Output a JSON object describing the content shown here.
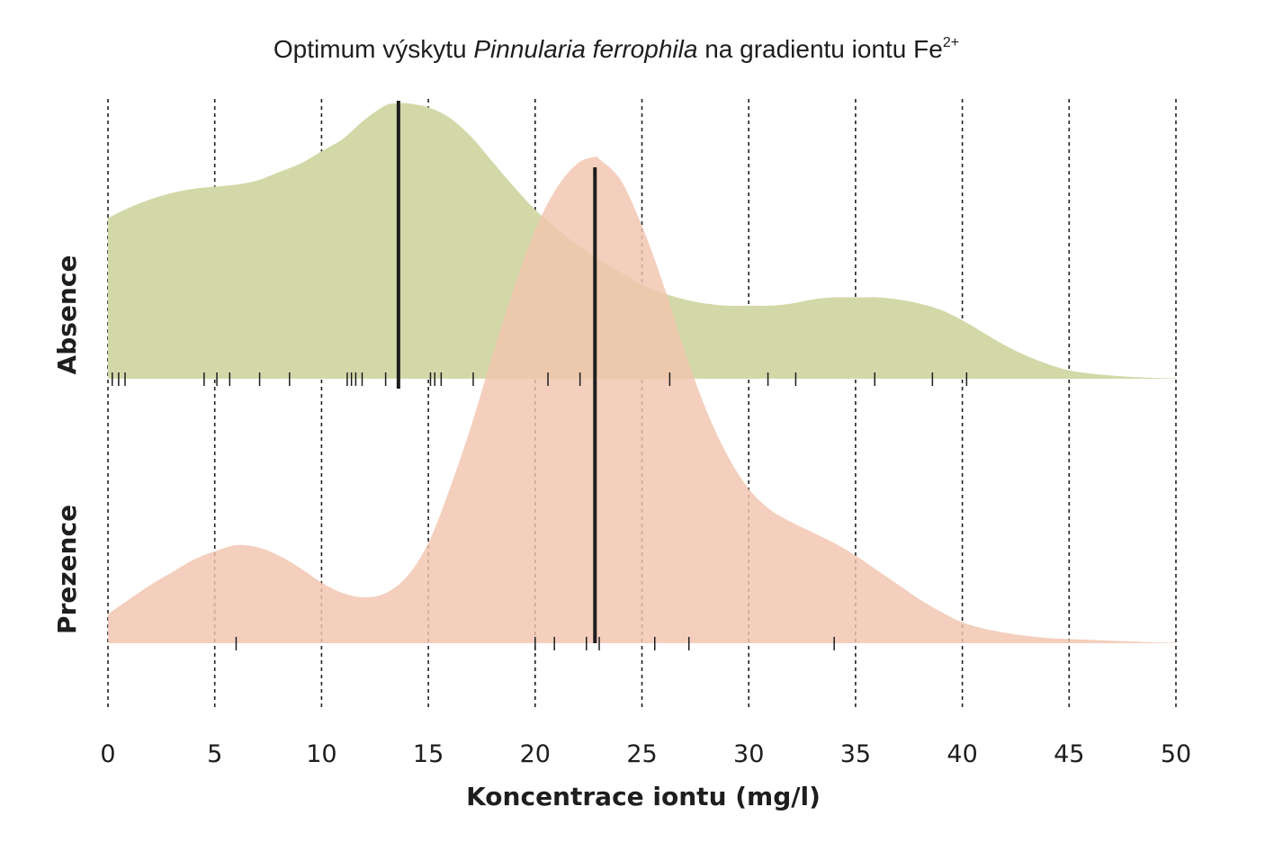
{
  "chart_data": {
    "type": "ridgeline density",
    "title": {
      "prefix": "Optimum výskytu ",
      "species": "Pinnularia ferrophila",
      "suffix": " na gradientu iontu Fe",
      "superscript": "2+"
    },
    "xlabel": "Koncentrace iontu (mg/l)",
    "xlim": [
      0,
      50
    ],
    "x_ticks": [
      0,
      5,
      10,
      15,
      20,
      25,
      30,
      35,
      40,
      45,
      50
    ],
    "grid": "vertical dotted at every x tick",
    "series": [
      {
        "name": "Absence",
        "color": "#d3d8a8",
        "density_x": [
          0,
          1,
          2,
          3,
          4,
          5,
          6,
          7,
          8,
          9,
          10,
          11,
          12,
          13,
          13.6,
          14,
          15,
          16,
          17,
          18,
          19,
          20,
          21,
          22,
          23,
          24,
          25,
          26,
          27,
          28,
          29,
          30,
          31,
          32,
          33,
          34,
          35,
          36,
          37,
          38,
          39,
          40,
          41,
          42,
          43,
          44,
          45,
          46,
          47,
          48,
          49,
          50
        ],
        "density_y": [
          0.77,
          0.82,
          0.86,
          0.89,
          0.91,
          0.92,
          0.93,
          0.95,
          0.99,
          1.03,
          1.09,
          1.15,
          1.24,
          1.31,
          1.32,
          1.32,
          1.3,
          1.25,
          1.16,
          1.04,
          0.92,
          0.81,
          0.72,
          0.64,
          0.57,
          0.51,
          0.45,
          0.41,
          0.38,
          0.36,
          0.35,
          0.35,
          0.35,
          0.36,
          0.38,
          0.39,
          0.39,
          0.39,
          0.38,
          0.36,
          0.33,
          0.28,
          0.22,
          0.16,
          0.11,
          0.07,
          0.04,
          0.025,
          0.015,
          0.008,
          0.004,
          0.002
        ],
        "median": 13.6,
        "observations": [
          0.2,
          0.5,
          0.8,
          4.5,
          5.1,
          5.7,
          7.1,
          8.5,
          11.2,
          11.4,
          11.6,
          11.9,
          13.0,
          15.1,
          15.3,
          15.6,
          17.1,
          20.6,
          22.1,
          26.3,
          30.9,
          32.2,
          35.9,
          38.6,
          40.2
        ]
      },
      {
        "name": "Prezence",
        "color": "#f2c4ae",
        "density_x": [
          0,
          1,
          2,
          3,
          4,
          5,
          6,
          7,
          8,
          9,
          10,
          11,
          12,
          13,
          14,
          15,
          16,
          17,
          18,
          19,
          20,
          21,
          22,
          22.8,
          23,
          24,
          25,
          26,
          27,
          28,
          29,
          30,
          31,
          32,
          33,
          34,
          35,
          36,
          37,
          38,
          39,
          40,
          41,
          42,
          43,
          44,
          45,
          46,
          47,
          48,
          49,
          50
        ],
        "density_y": [
          0.14,
          0.21,
          0.28,
          0.34,
          0.4,
          0.44,
          0.47,
          0.46,
          0.42,
          0.36,
          0.29,
          0.24,
          0.22,
          0.24,
          0.32,
          0.48,
          0.74,
          1.04,
          1.38,
          1.7,
          1.98,
          2.18,
          2.3,
          2.33,
          2.32,
          2.22,
          2.0,
          1.72,
          1.4,
          1.12,
          0.9,
          0.74,
          0.64,
          0.58,
          0.53,
          0.48,
          0.42,
          0.35,
          0.28,
          0.21,
          0.15,
          0.1,
          0.07,
          0.05,
          0.035,
          0.025,
          0.02,
          0.016,
          0.012,
          0.008,
          0.004,
          0.002
        ],
        "median": 22.8,
        "observations": [
          6.0,
          20.0,
          20.9,
          22.4,
          23.0,
          25.6,
          27.2,
          34.0
        ]
      }
    ]
  }
}
